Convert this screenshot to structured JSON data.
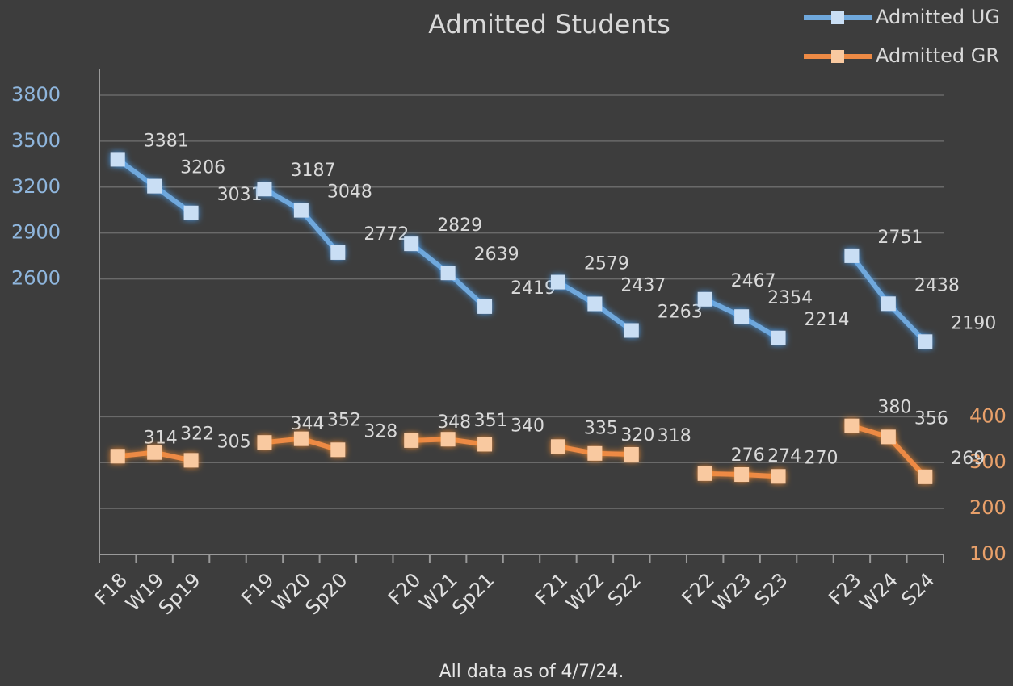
{
  "chart_data": {
    "type": "line",
    "title": "Admitted Students",
    "footnote": "All data as of 4/7/24.",
    "categories": [
      "F18",
      "W19",
      "Sp19",
      null,
      "F19",
      "W20",
      "Sp20",
      null,
      "F20",
      "W21",
      "Sp21",
      null,
      "F21",
      "W22",
      "S22",
      null,
      "F22",
      "W23",
      "S23",
      null,
      "F23",
      "W24",
      "S24"
    ],
    "series": [
      {
        "name": "Admitted UG",
        "color": "#6fa8dc",
        "marker_color": "#c9def4",
        "values": [
          3381,
          3206,
          3031,
          null,
          3187,
          3048,
          2772,
          null,
          2829,
          2639,
          2419,
          null,
          2579,
          2437,
          2263,
          null,
          2467,
          2354,
          2214,
          null,
          2751,
          2438,
          2190
        ]
      },
      {
        "name": "Admitted GR",
        "color": "#ed8a45",
        "marker_color": "#f9c9a0",
        "axis": "y2",
        "values": [
          314,
          322,
          305,
          null,
          344,
          352,
          328,
          null,
          348,
          351,
          340,
          null,
          335,
          320,
          318,
          null,
          276,
          274,
          270,
          null,
          380,
          356,
          269
        ]
      }
    ],
    "ylim": [
      800,
      4000
    ],
    "yticks": [
      2600,
      2900,
      3200,
      3500,
      3800
    ],
    "y2lim": [
      100,
      1167
    ],
    "y2ticks": [
      100,
      200,
      300,
      400
    ],
    "grid": true,
    "legend": "top-right"
  }
}
